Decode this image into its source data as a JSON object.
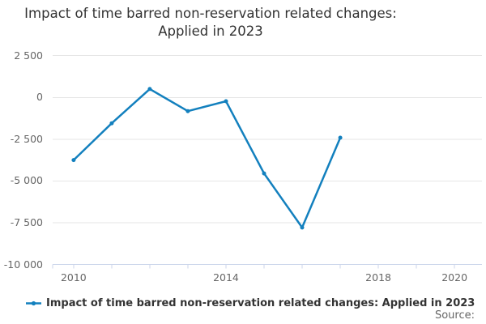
{
  "source_label": "Source:",
  "colors": {
    "line": "#1380be",
    "grid": "#e6e6e6",
    "axis": "#ccd6eb",
    "title_text": "#333333",
    "muted_text": "#666666"
  },
  "chart_data": {
    "type": "line",
    "title": "Impact of time barred non-reservation related changes: Applied in 2023",
    "series": [
      {
        "name": "Impact of time barred non-reservation related changes: Applied in 2023",
        "x": [
          2010,
          2011,
          2012,
          2013,
          2014,
          2015,
          2016,
          2017
        ],
        "values": [
          -3750,
          -1550,
          500,
          -820,
          -230,
          -4550,
          -7790,
          -2410
        ]
      }
    ],
    "xlabel": "",
    "ylabel": "",
    "ylim": [
      -10000,
      2500
    ],
    "xlim": [
      2009.45,
      2020.72
    ],
    "y_ticks": [
      2500,
      0,
      -2500,
      -5000,
      -7500,
      -10000
    ],
    "y_tick_labels": [
      "2 500",
      "0",
      "-2 500",
      "-5 000",
      "-7 500",
      "-10 000"
    ],
    "x_tick_years": [
      2010,
      2011,
      2012,
      2013,
      2014,
      2015,
      2016,
      2017,
      2018,
      2019,
      2020
    ],
    "x_label_years": [
      2010,
      2014,
      2018,
      2020
    ],
    "grid": true,
    "legend_position": "bottom-left"
  }
}
